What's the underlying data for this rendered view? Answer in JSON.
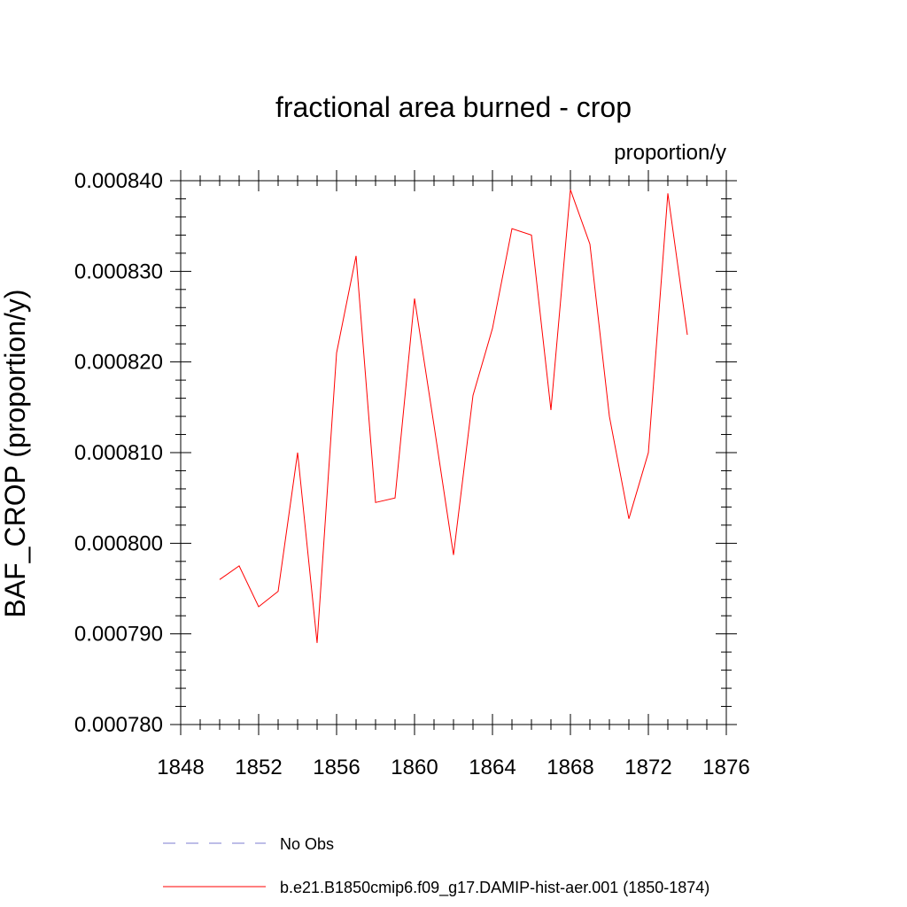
{
  "chart_data": {
    "type": "line",
    "title": "fractional area burned - crop",
    "units": "proportion/y",
    "ylabel": "BAF_CROP  (proportion/y)",
    "xlabel": "",
    "xlim": [
      1848,
      1876
    ],
    "ylim": [
      0.00078,
      0.00084
    ],
    "x_ticks": [
      1848,
      1852,
      1856,
      1860,
      1864,
      1868,
      1872,
      1876
    ],
    "x_tick_labels": [
      "1848",
      "1852",
      "1856",
      "1860",
      "1864",
      "1868",
      "1872",
      "1876"
    ],
    "y_ticks": [
      0.00078,
      0.00079,
      0.0008,
      0.00081,
      0.00082,
      0.00083,
      0.00084
    ],
    "y_tick_labels": [
      "0.000780",
      "0.000790",
      "0.000800",
      "0.000810",
      "0.000820",
      "0.000830",
      "0.000840"
    ],
    "grid": false,
    "legend_position": "bottom",
    "legend": [
      {
        "label": "No Obs",
        "color": "#7b7bd0",
        "style": "dashed"
      },
      {
        "label": "b.e21.B1850cmip6.f09_g17.DAMIP-hist-aer.001 (1850-1874)",
        "color": "#ff0000",
        "style": "solid"
      }
    ],
    "series": [
      {
        "name": "b.e21.B1850cmip6.f09_g17.DAMIP-hist-aer.001 (1850-1874)",
        "color": "#ff0000",
        "x": [
          1850,
          1851,
          1852,
          1853,
          1854,
          1855,
          1856,
          1857,
          1858,
          1859,
          1860,
          1861,
          1862,
          1863,
          1864,
          1865,
          1866,
          1867,
          1868,
          1869,
          1870,
          1871,
          1872,
          1873,
          1874
        ],
        "y": [
          0.000796,
          0.0007975,
          0.000793,
          0.0007947,
          0.00081,
          0.000789,
          0.000821,
          0.0008317,
          0.0008045,
          0.000805,
          0.000827,
          0.000813,
          0.0007987,
          0.0008163,
          0.0008237,
          0.0008347,
          0.000834,
          0.0008147,
          0.000839,
          0.000833,
          0.000814,
          0.0008027,
          0.00081,
          0.0008386,
          0.000823
        ]
      }
    ]
  }
}
